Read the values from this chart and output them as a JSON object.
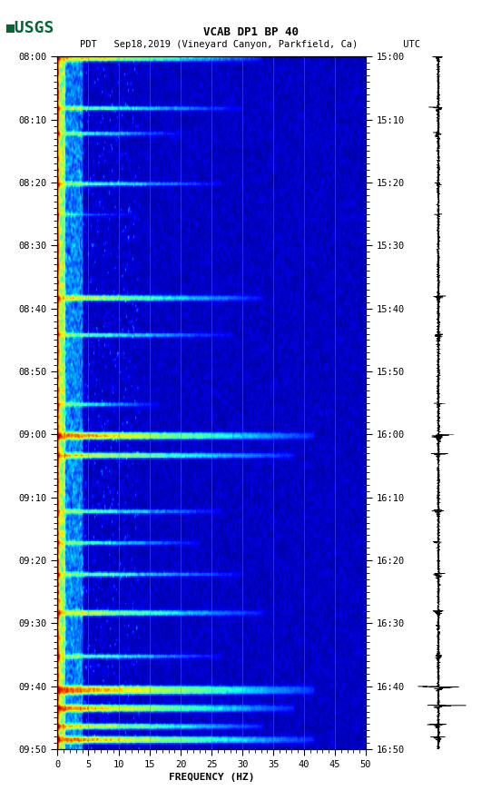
{
  "title_line1": "VCAB DP1 BP 40",
  "title_line2": "PDT   Sep18,2019 (Vineyard Canyon, Parkfield, Ca)        UTC",
  "xlabel": "FREQUENCY (HZ)",
  "x_ticks": [
    0,
    5,
    10,
    15,
    20,
    25,
    30,
    35,
    40,
    45,
    50
  ],
  "xlim": [
    0,
    50
  ],
  "left_time_labels": [
    "08:00",
    "08:10",
    "08:20",
    "08:30",
    "08:40",
    "08:50",
    "09:00",
    "09:10",
    "09:20",
    "09:30",
    "09:40",
    "09:50"
  ],
  "right_time_labels": [
    "15:00",
    "15:10",
    "15:20",
    "15:30",
    "15:40",
    "15:50",
    "16:00",
    "16:10",
    "16:20",
    "16:30",
    "16:40",
    "16:50"
  ],
  "fig_bg": "#ffffff",
  "usgs_color": "#006633",
  "freq_max": 50,
  "time_minutes": 110,
  "grid_line_color": "#888844",
  "grid_freqs": [
    5,
    10,
    15,
    20,
    25,
    30,
    35,
    40,
    45
  ]
}
